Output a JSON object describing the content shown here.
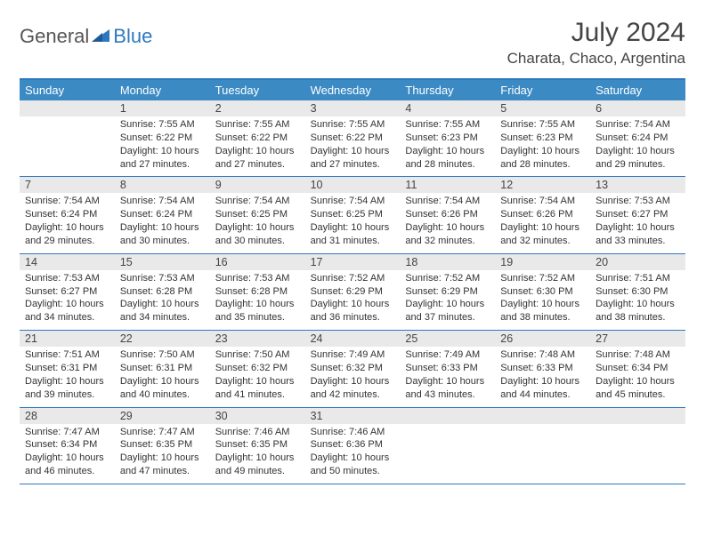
{
  "brand": {
    "part1": "General",
    "part2": "Blue"
  },
  "title": "July 2024",
  "location": "Charata, Chaco, Argentina",
  "colors": {
    "header_bg": "#3b8ac4",
    "border": "#2f78c0",
    "daynum_bg": "#e9e9e9",
    "text": "#333333"
  },
  "dayNames": [
    "Sunday",
    "Monday",
    "Tuesday",
    "Wednesday",
    "Thursday",
    "Friday",
    "Saturday"
  ],
  "weeks": [
    [
      {
        "n": "",
        "sr": "",
        "ss": "",
        "dl": ""
      },
      {
        "n": "1",
        "sr": "Sunrise: 7:55 AM",
        "ss": "Sunset: 6:22 PM",
        "dl": "Daylight: 10 hours and 27 minutes."
      },
      {
        "n": "2",
        "sr": "Sunrise: 7:55 AM",
        "ss": "Sunset: 6:22 PM",
        "dl": "Daylight: 10 hours and 27 minutes."
      },
      {
        "n": "3",
        "sr": "Sunrise: 7:55 AM",
        "ss": "Sunset: 6:22 PM",
        "dl": "Daylight: 10 hours and 27 minutes."
      },
      {
        "n": "4",
        "sr": "Sunrise: 7:55 AM",
        "ss": "Sunset: 6:23 PM",
        "dl": "Daylight: 10 hours and 28 minutes."
      },
      {
        "n": "5",
        "sr": "Sunrise: 7:55 AM",
        "ss": "Sunset: 6:23 PM",
        "dl": "Daylight: 10 hours and 28 minutes."
      },
      {
        "n": "6",
        "sr": "Sunrise: 7:54 AM",
        "ss": "Sunset: 6:24 PM",
        "dl": "Daylight: 10 hours and 29 minutes."
      }
    ],
    [
      {
        "n": "7",
        "sr": "Sunrise: 7:54 AM",
        "ss": "Sunset: 6:24 PM",
        "dl": "Daylight: 10 hours and 29 minutes."
      },
      {
        "n": "8",
        "sr": "Sunrise: 7:54 AM",
        "ss": "Sunset: 6:24 PM",
        "dl": "Daylight: 10 hours and 30 minutes."
      },
      {
        "n": "9",
        "sr": "Sunrise: 7:54 AM",
        "ss": "Sunset: 6:25 PM",
        "dl": "Daylight: 10 hours and 30 minutes."
      },
      {
        "n": "10",
        "sr": "Sunrise: 7:54 AM",
        "ss": "Sunset: 6:25 PM",
        "dl": "Daylight: 10 hours and 31 minutes."
      },
      {
        "n": "11",
        "sr": "Sunrise: 7:54 AM",
        "ss": "Sunset: 6:26 PM",
        "dl": "Daylight: 10 hours and 32 minutes."
      },
      {
        "n": "12",
        "sr": "Sunrise: 7:54 AM",
        "ss": "Sunset: 6:26 PM",
        "dl": "Daylight: 10 hours and 32 minutes."
      },
      {
        "n": "13",
        "sr": "Sunrise: 7:53 AM",
        "ss": "Sunset: 6:27 PM",
        "dl": "Daylight: 10 hours and 33 minutes."
      }
    ],
    [
      {
        "n": "14",
        "sr": "Sunrise: 7:53 AM",
        "ss": "Sunset: 6:27 PM",
        "dl": "Daylight: 10 hours and 34 minutes."
      },
      {
        "n": "15",
        "sr": "Sunrise: 7:53 AM",
        "ss": "Sunset: 6:28 PM",
        "dl": "Daylight: 10 hours and 34 minutes."
      },
      {
        "n": "16",
        "sr": "Sunrise: 7:53 AM",
        "ss": "Sunset: 6:28 PM",
        "dl": "Daylight: 10 hours and 35 minutes."
      },
      {
        "n": "17",
        "sr": "Sunrise: 7:52 AM",
        "ss": "Sunset: 6:29 PM",
        "dl": "Daylight: 10 hours and 36 minutes."
      },
      {
        "n": "18",
        "sr": "Sunrise: 7:52 AM",
        "ss": "Sunset: 6:29 PM",
        "dl": "Daylight: 10 hours and 37 minutes."
      },
      {
        "n": "19",
        "sr": "Sunrise: 7:52 AM",
        "ss": "Sunset: 6:30 PM",
        "dl": "Daylight: 10 hours and 38 minutes."
      },
      {
        "n": "20",
        "sr": "Sunrise: 7:51 AM",
        "ss": "Sunset: 6:30 PM",
        "dl": "Daylight: 10 hours and 38 minutes."
      }
    ],
    [
      {
        "n": "21",
        "sr": "Sunrise: 7:51 AM",
        "ss": "Sunset: 6:31 PM",
        "dl": "Daylight: 10 hours and 39 minutes."
      },
      {
        "n": "22",
        "sr": "Sunrise: 7:50 AM",
        "ss": "Sunset: 6:31 PM",
        "dl": "Daylight: 10 hours and 40 minutes."
      },
      {
        "n": "23",
        "sr": "Sunrise: 7:50 AM",
        "ss": "Sunset: 6:32 PM",
        "dl": "Daylight: 10 hours and 41 minutes."
      },
      {
        "n": "24",
        "sr": "Sunrise: 7:49 AM",
        "ss": "Sunset: 6:32 PM",
        "dl": "Daylight: 10 hours and 42 minutes."
      },
      {
        "n": "25",
        "sr": "Sunrise: 7:49 AM",
        "ss": "Sunset: 6:33 PM",
        "dl": "Daylight: 10 hours and 43 minutes."
      },
      {
        "n": "26",
        "sr": "Sunrise: 7:48 AM",
        "ss": "Sunset: 6:33 PM",
        "dl": "Daylight: 10 hours and 44 minutes."
      },
      {
        "n": "27",
        "sr": "Sunrise: 7:48 AM",
        "ss": "Sunset: 6:34 PM",
        "dl": "Daylight: 10 hours and 45 minutes."
      }
    ],
    [
      {
        "n": "28",
        "sr": "Sunrise: 7:47 AM",
        "ss": "Sunset: 6:34 PM",
        "dl": "Daylight: 10 hours and 46 minutes."
      },
      {
        "n": "29",
        "sr": "Sunrise: 7:47 AM",
        "ss": "Sunset: 6:35 PM",
        "dl": "Daylight: 10 hours and 47 minutes."
      },
      {
        "n": "30",
        "sr": "Sunrise: 7:46 AM",
        "ss": "Sunset: 6:35 PM",
        "dl": "Daylight: 10 hours and 49 minutes."
      },
      {
        "n": "31",
        "sr": "Sunrise: 7:46 AM",
        "ss": "Sunset: 6:36 PM",
        "dl": "Daylight: 10 hours and 50 minutes."
      },
      {
        "n": "",
        "sr": "",
        "ss": "",
        "dl": ""
      },
      {
        "n": "",
        "sr": "",
        "ss": "",
        "dl": ""
      },
      {
        "n": "",
        "sr": "",
        "ss": "",
        "dl": ""
      }
    ]
  ]
}
